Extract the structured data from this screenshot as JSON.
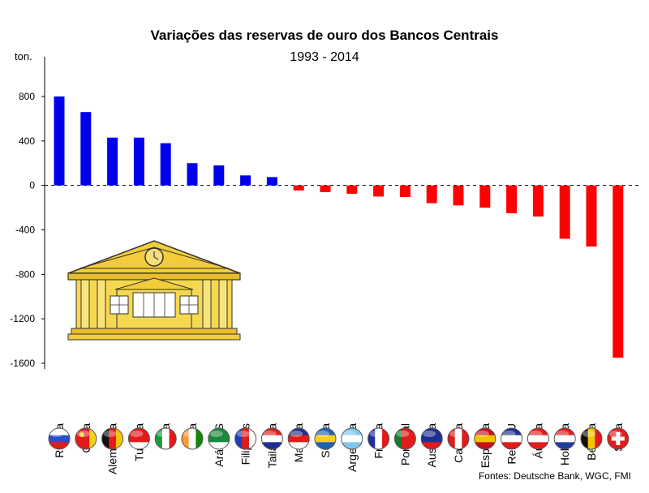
{
  "chart_data": {
    "type": "bar",
    "title": "Variações das reservas de ouro dos Bancos Centrais",
    "subtitle": "1993 - 2014",
    "ylabel": "ton.",
    "xlabel": "",
    "ylim": [
      -1600,
      800
    ],
    "yticks": [
      800,
      400,
      0,
      -400,
      -800,
      -1200,
      -1600
    ],
    "ytick_labels": [
      "800",
      "400",
      "0",
      "-400",
      "-800",
      "-1200",
      "-1600"
    ],
    "grid": false,
    "categories": [
      "Rússia",
      "China",
      "Alemanha",
      "Turquia",
      "Itália",
      "Índia",
      "Arábia S",
      "Filipinas",
      "Tailândia",
      "Malásia",
      "Suécia",
      "Argentina",
      "França",
      "Portugal",
      "Austrália",
      "Canada",
      "Espanha",
      "Reino U",
      "Áustria",
      "Holanda",
      "Bélgica",
      "Suiça"
    ],
    "values": [
      800,
      660,
      430,
      430,
      380,
      200,
      180,
      90,
      75,
      -45,
      -60,
      -75,
      -100,
      -105,
      -160,
      -180,
      -200,
      -250,
      -280,
      -480,
      -550,
      -1550
    ],
    "colors": {
      "positive": "#0000ee",
      "negative": "#ff0000"
    }
  },
  "source": "Fontes: Deutsche Bank, WGC, FMI",
  "icons": {
    "building": "central-bank-building-icon",
    "flags": [
      "russia-flag-icon",
      "china-flag-icon",
      "germany-flag-icon",
      "turkey-flag-icon",
      "italy-flag-icon",
      "india-flag-icon",
      "saudi-arabia-flag-icon",
      "philippines-flag-icon",
      "thailand-flag-icon",
      "malaysia-flag-icon",
      "sweden-flag-icon",
      "argentina-flag-icon",
      "france-flag-icon",
      "portugal-flag-icon",
      "australia-flag-icon",
      "canada-flag-icon",
      "spain-flag-icon",
      "uk-flag-icon",
      "austria-flag-icon",
      "netherlands-flag-icon",
      "belgium-flag-icon",
      "switzerland-flag-icon"
    ]
  }
}
